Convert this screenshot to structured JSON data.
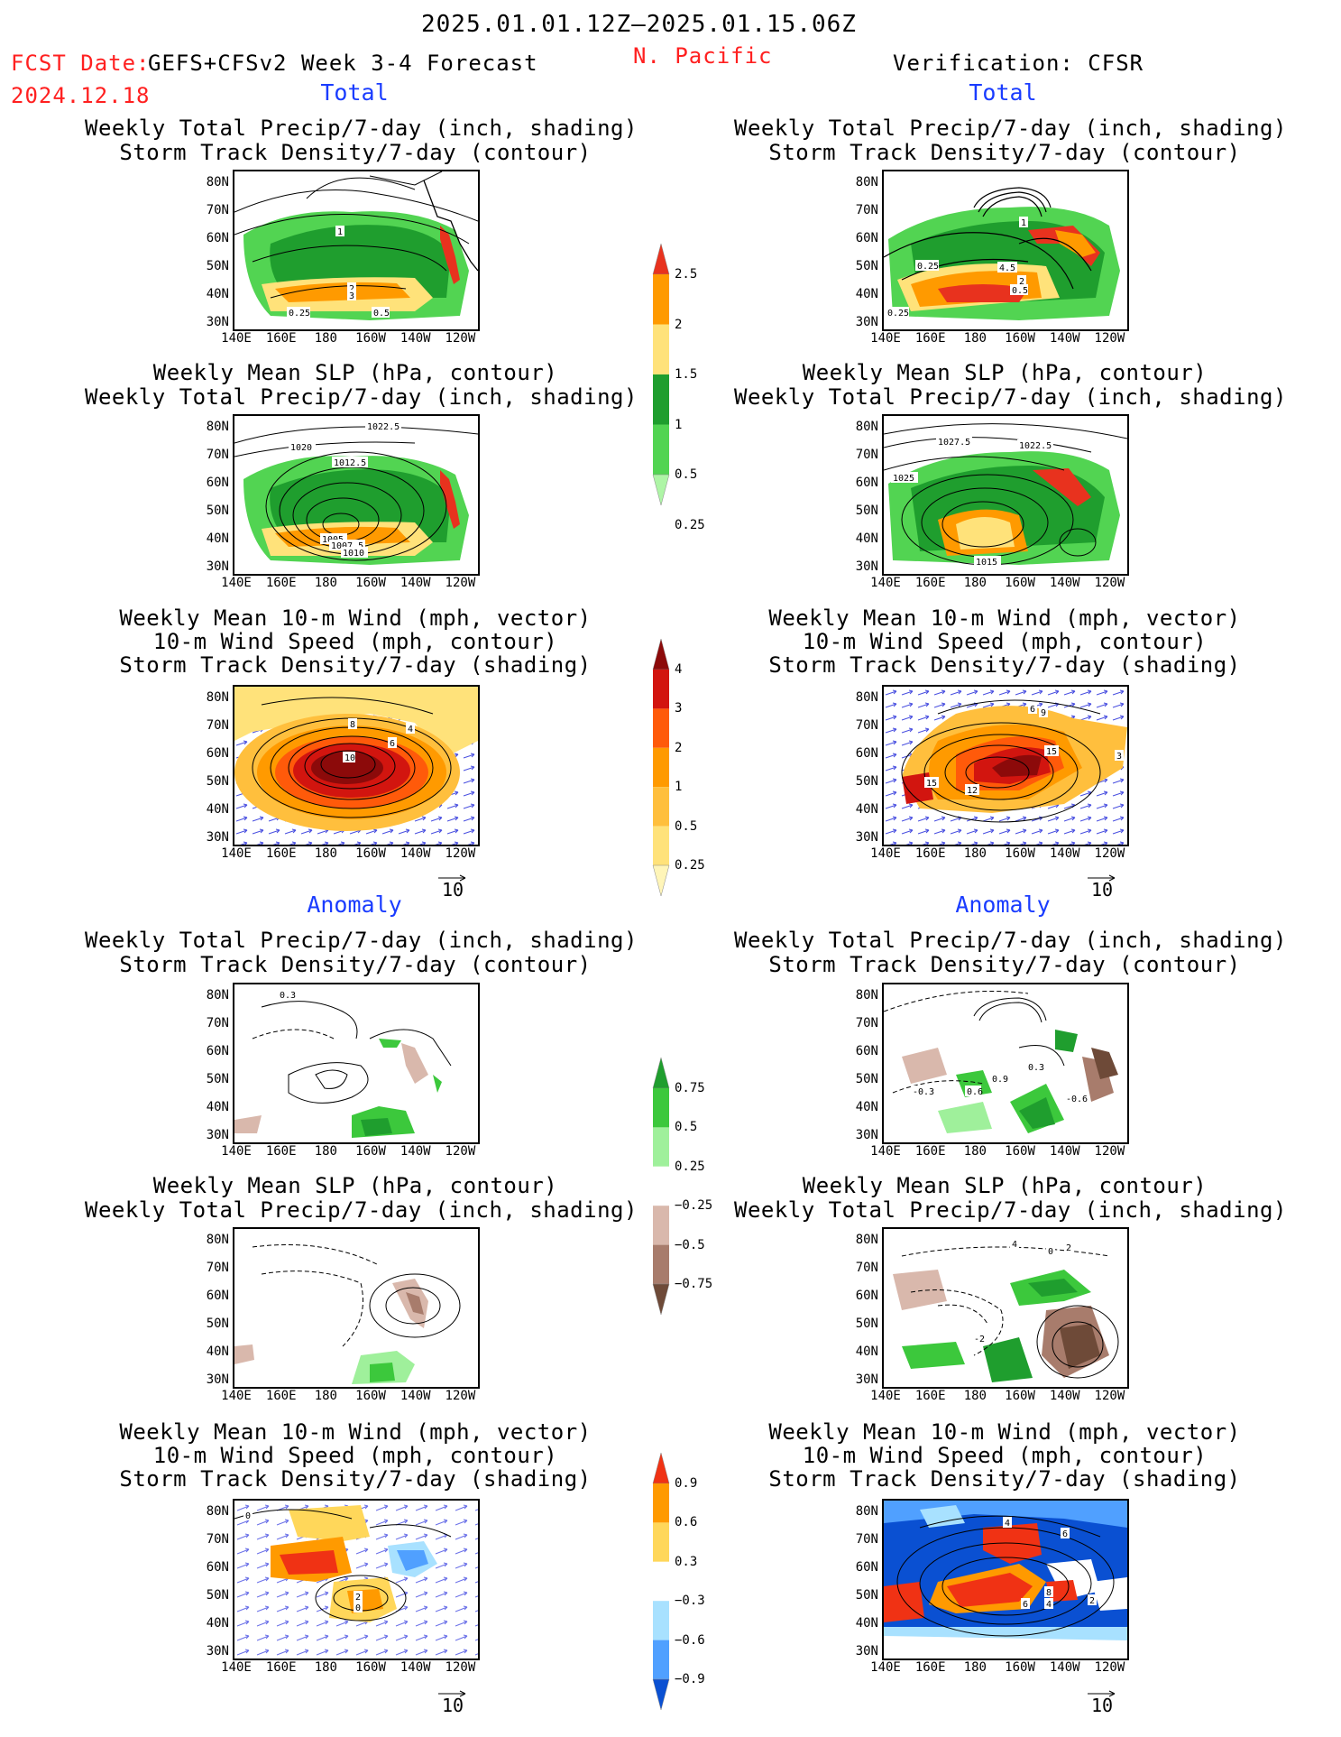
{
  "header": {
    "valid_period": "2025.01.01.12Z–2025.01.15.06Z",
    "fcst_prefix": "FCST Date:",
    "fcst_model": "GEFS+CFSv2 Week 3-4 Forecast",
    "fcst_date": "2024.12.18",
    "region": "N. Pacific",
    "verification": "Verification: CFSR"
  },
  "sections": {
    "total": "Total",
    "anomaly": "Anomaly"
  },
  "panel_titles": {
    "precip_storm": [
      "Weekly Total Precip/7-day (inch, shading)",
      "Storm Track Density/7-day (contour)"
    ],
    "slp_precip": [
      "Weekly Mean SLP (hPa, contour)",
      "Weekly Total Precip/7-day (inch, shading)"
    ],
    "wind_storm": [
      "Weekly Mean 10-m Wind (mph, vector)",
      "10-m Wind Speed (mph, contour)",
      "Storm Track Density/7-day (shading)"
    ]
  },
  "axes": {
    "lat": [
      "80N",
      "70N",
      "60N",
      "50N",
      "40N",
      "30N"
    ],
    "lon": [
      "140E",
      "160E",
      "180",
      "160W",
      "140W",
      "120W"
    ]
  },
  "vector_ref": "10",
  "colorbars": {
    "precip_total": {
      "labels": [
        "2.5",
        "2",
        "1.5",
        "1",
        "0.5",
        "0.25"
      ],
      "colors": [
        "#e8321e",
        "#ff9a00",
        "#ffe27a",
        "#1f9e2e",
        "#52d452",
        "#aef5a6"
      ]
    },
    "storm_total": {
      "labels": [
        "4",
        "3",
        "2",
        "1",
        "0.5",
        "0.25"
      ],
      "colors": [
        "#8c0a0a",
        "#d2150f",
        "#ff5a0a",
        "#ff9a00",
        "#ffbf3d",
        "#ffe27a",
        "#fff5b8"
      ]
    },
    "precip_anom": {
      "labels": [
        "0.75",
        "0.5",
        "0.25",
        "−0.25",
        "−0.5",
        "−0.75"
      ],
      "colors": [
        "#1f9e2e",
        "#3cc83c",
        "#9ff09b",
        "#ffffff",
        "#d9b8ac",
        "#a87c6c",
        "#6e4a38"
      ]
    },
    "storm_anom": {
      "labels": [
        "0.9",
        "0.6",
        "0.3",
        "−0.3",
        "−0.6",
        "−0.9"
      ],
      "colors": [
        "#f03214",
        "#ff9a00",
        "#ffd75a",
        "#ffffff",
        "#a8e1ff",
        "#50a0ff",
        "#0a50d2"
      ]
    }
  },
  "contour_labels": {
    "fc_total_precip": [
      "1",
      "2",
      "3",
      "0.25",
      "0.5"
    ],
    "ob_total_precip": [
      "1",
      "0.25",
      "4.5",
      "2",
      "0.5",
      "0.25"
    ],
    "fc_total_slp": [
      "1022.5",
      "1020",
      "1012.5",
      "1005",
      "1007.5",
      "1010"
    ],
    "ob_total_slp": [
      "1027.5",
      "1022.5",
      "1025",
      "1015"
    ],
    "fc_total_wind": [
      "8",
      "10",
      "6",
      "4"
    ],
    "ob_total_wind": [
      "6",
      "9",
      "15",
      "15",
      "12",
      "3"
    ],
    "fc_anom_precip": [
      "0.3"
    ],
    "ob_anom_precip": [
      "0.3",
      "0.9",
      "0.6",
      "-0.3",
      "-0.6"
    ],
    "fc_anom_wind": [
      "0",
      "2",
      "0"
    ],
    "ob_anom_wind": [
      "4",
      "6",
      "8",
      "4",
      "6",
      "2"
    ],
    "ob_anom_slp": [
      "4",
      "0",
      "2",
      "-2"
    ]
  }
}
